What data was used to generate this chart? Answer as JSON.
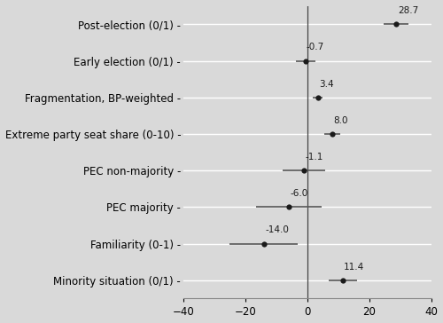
{
  "labels": [
    "Post-election (0/1)",
    "Early election (0/1)",
    "Fragmentation, BP-weighted",
    "Extreme party seat share (0-10)",
    "PEC non-majority",
    "PEC majority",
    "Familiarity (0-1)",
    "Minority situation (0/1)"
  ],
  "estimates": [
    28.7,
    -0.7,
    3.4,
    8.0,
    -1.1,
    -6.0,
    -14.0,
    11.4
  ],
  "ci_low": [
    24.5,
    -3.8,
    1.8,
    5.5,
    -8.0,
    -16.5,
    -25.0,
    7.0
  ],
  "ci_high": [
    32.5,
    2.5,
    5.0,
    10.5,
    5.8,
    4.5,
    -3.0,
    16.0
  ],
  "xlim": [
    -40,
    40
  ],
  "xticks": [
    -40,
    -20,
    0,
    20,
    40
  ],
  "background_color": "#d9d9d9",
  "panel_bg": "#d9d9d9",
  "dot_color": "#1a1a1a",
  "line_color": "#555555",
  "vline_color": "#444444",
  "hgrid_color": "#ffffff",
  "label_fontsize": 8.5,
  "tick_fontsize": 8.5,
  "annot_fontsize": 7.5
}
